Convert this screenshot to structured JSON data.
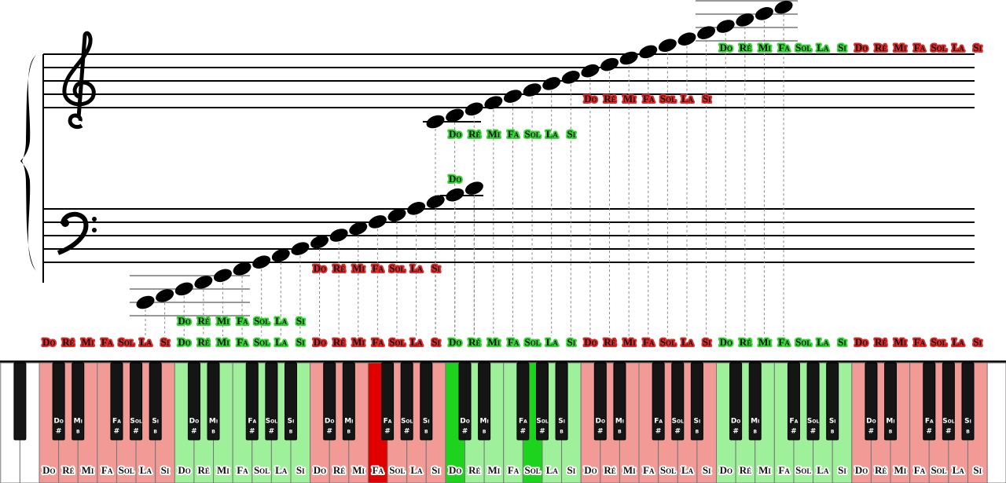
{
  "staff_labels": [
    {
      "color": "#36d636",
      "notes": [
        "Do",
        "Ré",
        "Mi",
        "Fa",
        "Sol",
        "La",
        "Si"
      ]
    },
    {
      "color": "#e02b2b",
      "notes": [
        "Do",
        "Ré",
        "Mi",
        "Fa",
        "Sol",
        "La",
        "Si"
      ]
    },
    {
      "color": "#36d636",
      "notes": [
        "Do"
      ]
    },
    {
      "color": "#36d636",
      "notes": [
        "Do",
        "Ré",
        "Mi",
        "Fa",
        "Sol",
        "La",
        "Si"
      ]
    },
    {
      "color": "#e02b2b",
      "notes": [
        "Do",
        "Ré",
        "Mi",
        "Fa",
        "Sol",
        "La",
        "Si"
      ]
    },
    {
      "color": "#36d636",
      "notes": [
        "Do",
        "Ré",
        "Mi",
        "Fa",
        "Sol",
        "La",
        "Si"
      ]
    },
    {
      "color": "#e02b2b",
      "notes": [
        "Do",
        "Ré",
        "Mi",
        "Fa",
        "Sol",
        "La",
        "Si"
      ]
    }
  ],
  "scale_row": [
    {
      "color": "#e02b2b",
      "notes": [
        "Do",
        "Ré",
        "Mi",
        "Fa",
        "Sol",
        "La",
        "Si"
      ]
    },
    {
      "color": "#36d636",
      "notes": [
        "Do",
        "Ré",
        "Mi",
        "Fa",
        "Sol",
        "La",
        "Si"
      ]
    },
    {
      "color": "#e02b2b",
      "notes": [
        "Do",
        "Ré",
        "Mi",
        "Fa",
        "Sol",
        "La",
        "Si"
      ]
    },
    {
      "color": "#36d636",
      "notes": [
        "Do",
        "Ré",
        "Mi",
        "Fa",
        "Sol",
        "La",
        "Si"
      ]
    },
    {
      "color": "#e02b2b",
      "notes": [
        "Do",
        "Ré",
        "Mi",
        "Fa",
        "Sol",
        "La",
        "Si"
      ]
    },
    {
      "color": "#36d636",
      "notes": [
        "Do",
        "Ré",
        "Mi",
        "Fa",
        "Sol",
        "La",
        "Si"
      ]
    },
    {
      "color": "#e02b2b",
      "notes": [
        "Do",
        "Ré",
        "Mi",
        "Fa",
        "Sol",
        "La",
        "Si"
      ]
    }
  ],
  "keyboard": {
    "octaves": [
      {
        "color": "#f29a96",
        "white": [
          "Do",
          "Ré",
          "Mi",
          "Fa",
          "Sol",
          "La",
          "Si"
        ],
        "black": [
          {
            "note": "Do",
            "accidental": "#"
          },
          {
            "note": "Mi",
            "accidental": "b"
          },
          {
            "note": "Fa",
            "accidental": "#"
          },
          {
            "note": "Sol",
            "accidental": "#"
          },
          {
            "note": "Si",
            "accidental": "b"
          }
        ]
      },
      {
        "color": "#9ef09a",
        "white": [
          "Do",
          "Ré",
          "Mi",
          "Fa",
          "Sol",
          "La",
          "Si"
        ],
        "black": [
          {
            "note": "Do",
            "accidental": "#"
          },
          {
            "note": "Mi",
            "accidental": "b"
          },
          {
            "note": "Fa",
            "accidental": "#"
          },
          {
            "note": "Sol",
            "accidental": "#"
          },
          {
            "note": "Si",
            "accidental": "b"
          }
        ]
      },
      {
        "color": "#f29a96",
        "highlight_color": "#e00000",
        "highlighted": [
          3
        ],
        "white": [
          "Do",
          "Ré",
          "Mi",
          "Fa",
          "Sol",
          "La",
          "Si"
        ],
        "black": [
          {
            "note": "Do",
            "accidental": "#"
          },
          {
            "note": "Mi",
            "accidental": "b"
          },
          {
            "note": "Fa",
            "accidental": "#"
          },
          {
            "note": "Sol",
            "accidental": "#"
          },
          {
            "note": "Si",
            "accidental": "b"
          }
        ]
      },
      {
        "color": "#9ef09a",
        "highlight_color": "#1ed31e",
        "highlighted": [
          0,
          4
        ],
        "white": [
          "Do",
          "Ré",
          "Mi",
          "Fa",
          "Sol",
          "La",
          "Si"
        ],
        "black": [
          {
            "note": "Do",
            "accidental": "#"
          },
          {
            "note": "Mi",
            "accidental": "b"
          },
          {
            "note": "Fa",
            "accidental": "#"
          },
          {
            "note": "Sol",
            "accidental": "#"
          },
          {
            "note": "Si",
            "accidental": "b"
          }
        ]
      },
      {
        "color": "#f29a96",
        "white": [
          "Do",
          "Ré",
          "Mi",
          "Fa",
          "Sol",
          "La",
          "Si"
        ],
        "black": [
          {
            "note": "Do",
            "accidental": "#"
          },
          {
            "note": "Mi",
            "accidental": "b"
          },
          {
            "note": "Fa",
            "accidental": "#"
          },
          {
            "note": "Sol",
            "accidental": "#"
          },
          {
            "note": "Si",
            "accidental": "b"
          }
        ]
      },
      {
        "color": "#9ef09a",
        "white": [
          "Do",
          "Ré",
          "Mi",
          "Fa",
          "Sol",
          "La",
          "Si"
        ],
        "black": [
          {
            "note": "Do",
            "accidental": "#"
          },
          {
            "note": "Mi",
            "accidental": "b"
          },
          {
            "note": "Fa",
            "accidental": "#"
          },
          {
            "note": "Sol",
            "accidental": "#"
          },
          {
            "note": "Si",
            "accidental": "b"
          }
        ]
      },
      {
        "color": "#f29a96",
        "white": [
          "Do",
          "Ré",
          "Mi",
          "Fa",
          "Sol",
          "La",
          "Si"
        ],
        "black": [
          {
            "note": "Do",
            "accidental": "#"
          },
          {
            "note": "Mi",
            "accidental": "b"
          },
          {
            "note": "Fa",
            "accidental": "#"
          },
          {
            "note": "Sol",
            "accidental": "#"
          },
          {
            "note": "Si",
            "accidental": "b"
          }
        ]
      }
    ]
  }
}
